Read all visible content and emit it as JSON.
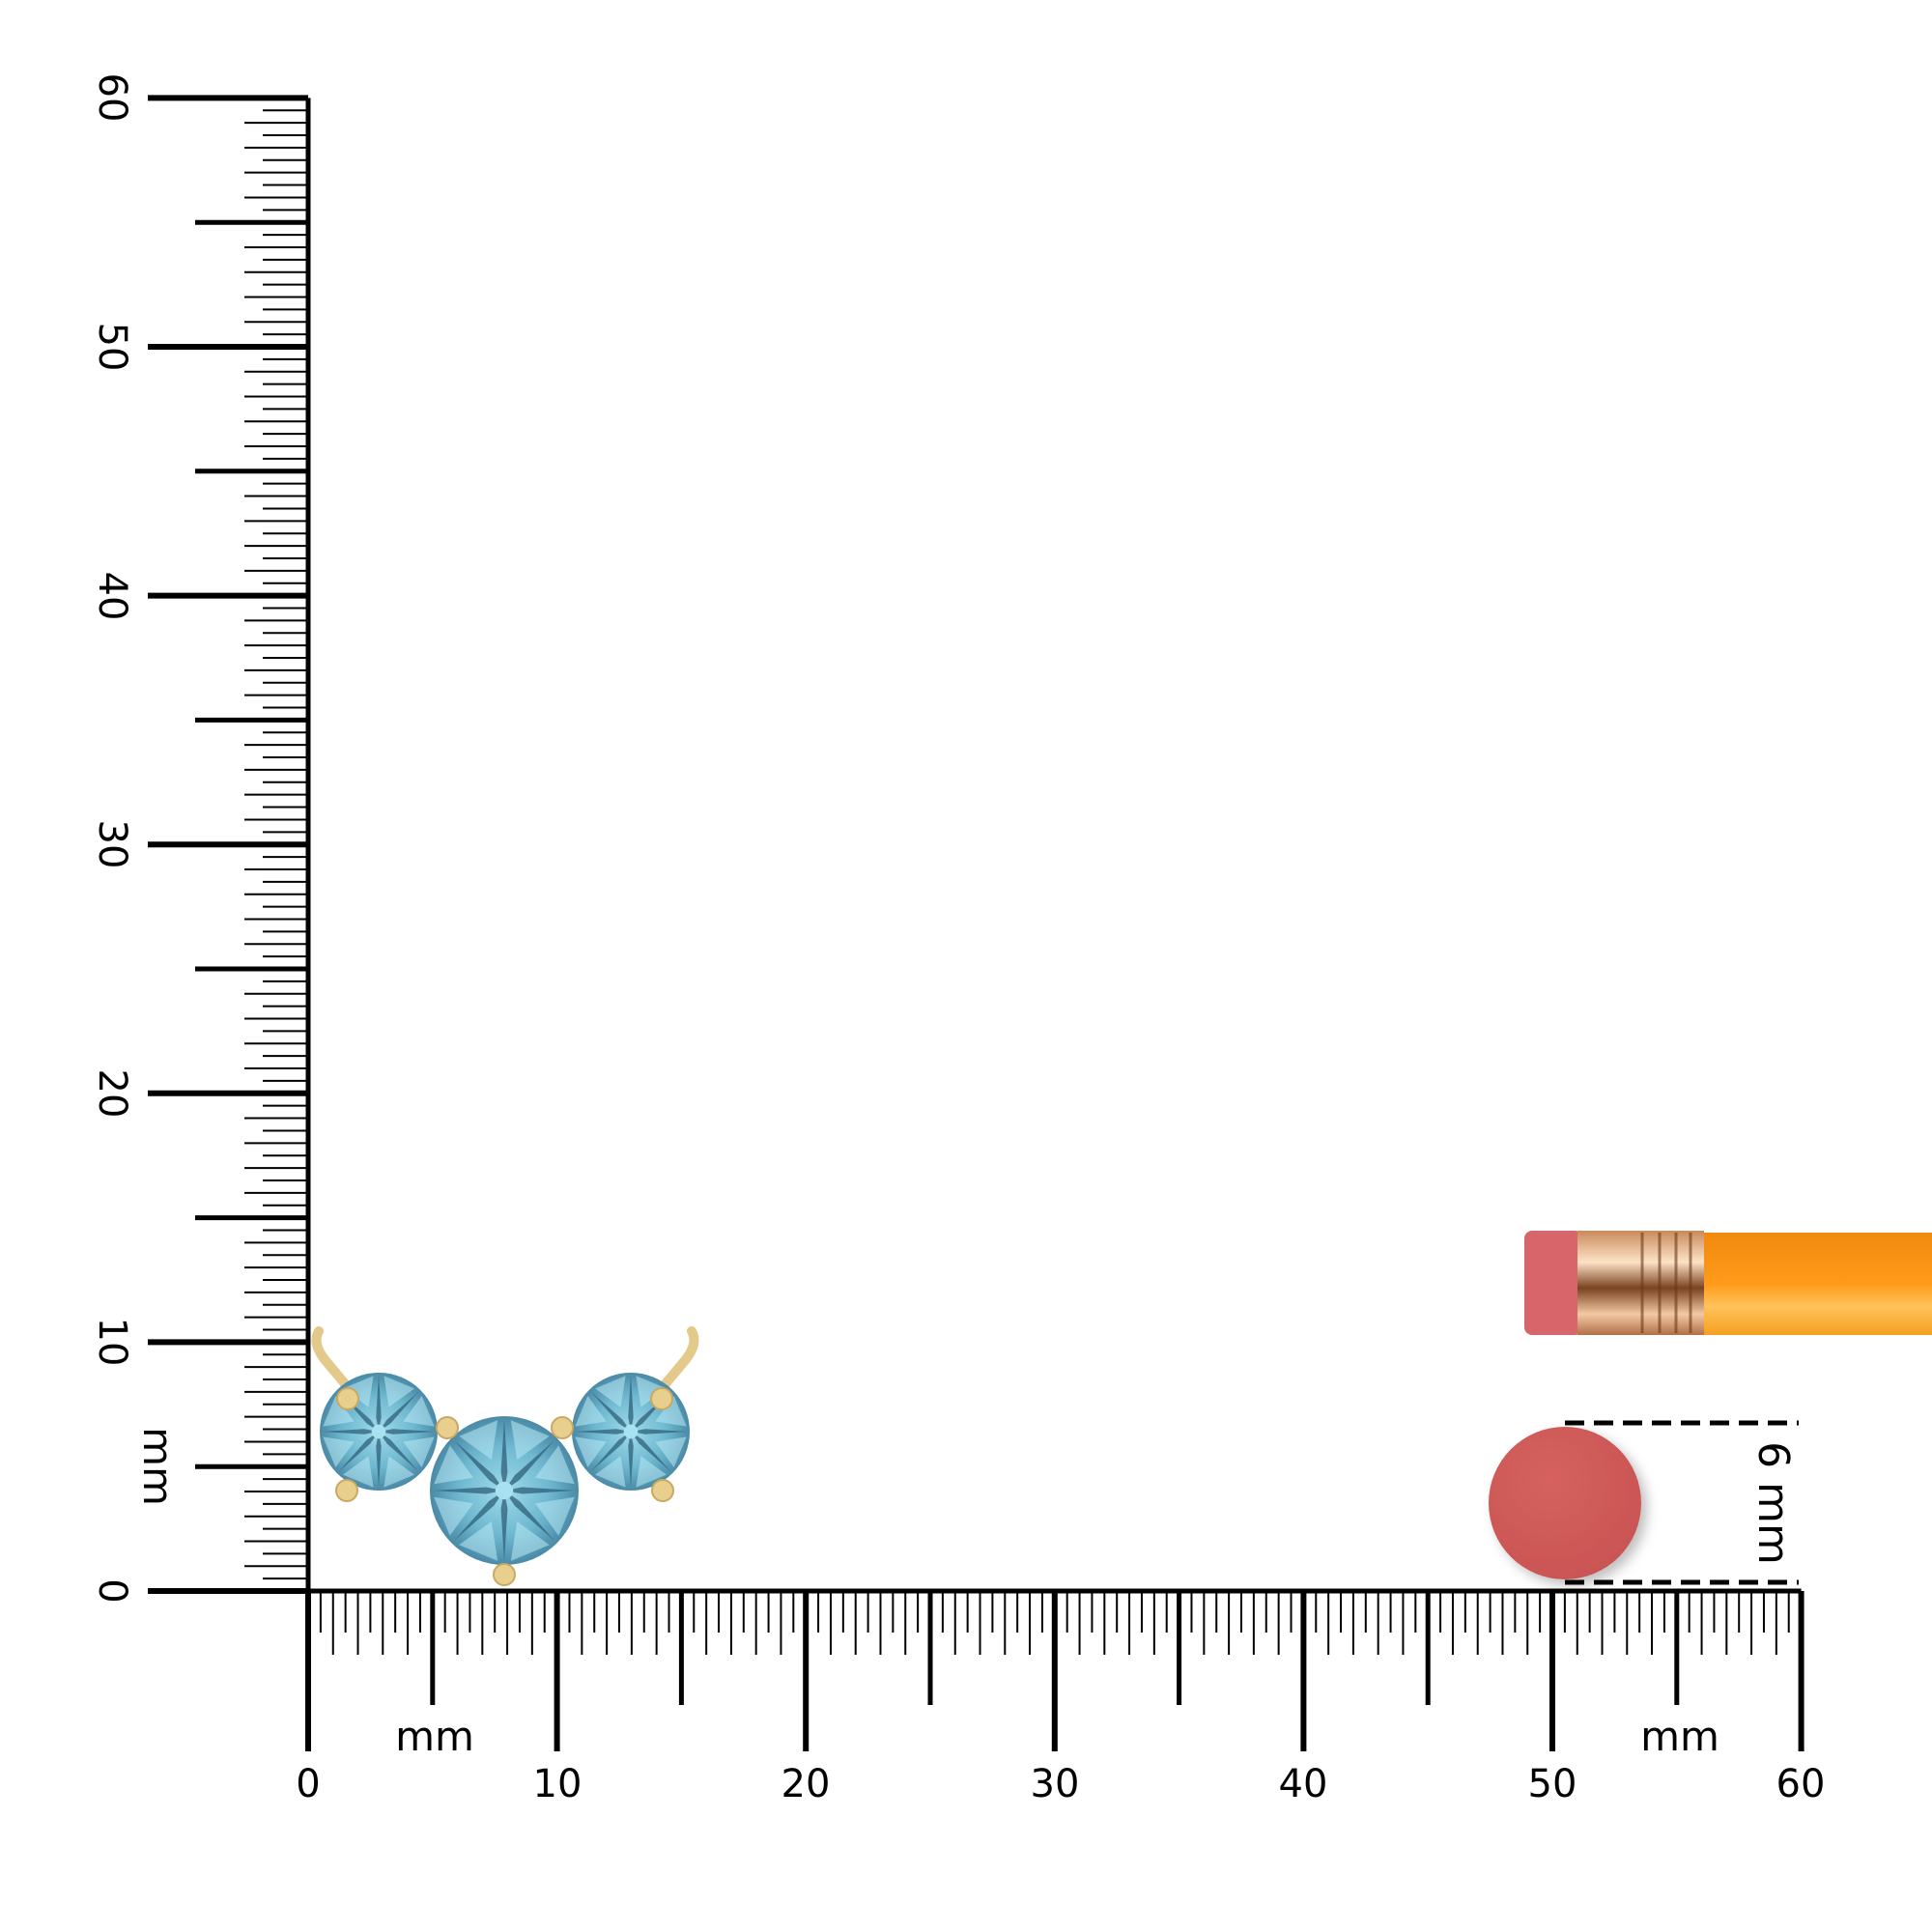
{
  "vertical_ruler": {
    "unit": "mm",
    "labels": [
      "0",
      "10",
      "20",
      "30",
      "40",
      "50",
      "60"
    ],
    "range_mm": [
      0,
      60
    ]
  },
  "horizontal_ruler": {
    "unit_left": "mm",
    "unit_right": "mm",
    "labels": [
      "0",
      "10",
      "20",
      "30",
      "40",
      "50",
      "60"
    ],
    "range_mm": [
      0,
      60
    ]
  },
  "reference": {
    "size_label": "6 mm",
    "eraser_color": "#d05a5a",
    "pencil_color": "#f7941d"
  },
  "product": {
    "gem_color": "#6fb8d0",
    "metal_color": "#e8cf8e",
    "stone_count": 3
  }
}
